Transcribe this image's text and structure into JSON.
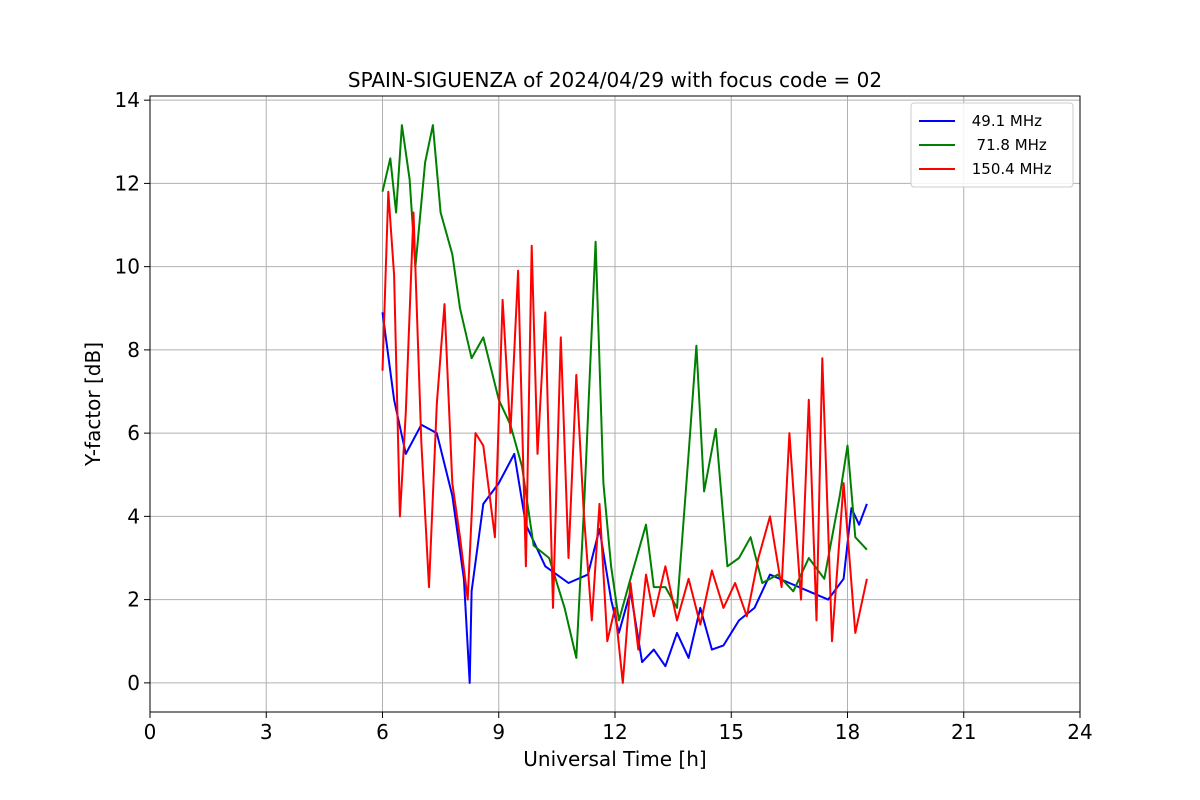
{
  "chart_data": {
    "type": "line",
    "title": "SPAIN-SIGUENZA of 2024/04/29 with focus code = 02",
    "xlabel": "Universal Time [h]",
    "ylabel": "Y-factor [dB]",
    "xlim": [
      0,
      24
    ],
    "ylim": [
      -0.7,
      14.1
    ],
    "xticks": [
      0,
      3,
      6,
      9,
      12,
      15,
      18,
      21,
      24
    ],
    "yticks": [
      0,
      2,
      4,
      6,
      8,
      10,
      12,
      14
    ],
    "grid": true,
    "legend_position": "top-right",
    "series": [
      {
        "name": " 49.1 MHz",
        "color": "#0000ff",
        "points": [
          [
            6.0,
            8.9
          ],
          [
            6.3,
            6.8
          ],
          [
            6.6,
            5.5
          ],
          [
            7.0,
            6.2
          ],
          [
            7.4,
            6.0
          ],
          [
            7.8,
            4.5
          ],
          [
            8.1,
            2.5
          ],
          [
            8.25,
            0.0
          ],
          [
            8.3,
            2.2
          ],
          [
            8.6,
            4.3
          ],
          [
            9.0,
            4.8
          ],
          [
            9.4,
            5.5
          ],
          [
            9.7,
            3.8
          ],
          [
            10.2,
            2.8
          ],
          [
            10.8,
            2.4
          ],
          [
            11.3,
            2.6
          ],
          [
            11.6,
            3.7
          ],
          [
            11.9,
            2.0
          ],
          [
            12.1,
            1.2
          ],
          [
            12.4,
            2.2
          ],
          [
            12.7,
            0.5
          ],
          [
            13.0,
            0.8
          ],
          [
            13.3,
            0.4
          ],
          [
            13.6,
            1.2
          ],
          [
            13.9,
            0.6
          ],
          [
            14.2,
            1.8
          ],
          [
            14.5,
            0.8
          ],
          [
            14.8,
            0.9
          ],
          [
            15.2,
            1.5
          ],
          [
            15.6,
            1.8
          ],
          [
            16.0,
            2.6
          ],
          [
            16.5,
            2.4
          ],
          [
            17.0,
            2.2
          ],
          [
            17.5,
            2.0
          ],
          [
            17.9,
            2.5
          ],
          [
            18.1,
            4.2
          ],
          [
            18.3,
            3.8
          ],
          [
            18.5,
            4.3
          ]
        ]
      },
      {
        "name": "  71.8 MHz",
        "color": "#008000",
        "points": [
          [
            6.0,
            11.8
          ],
          [
            6.2,
            12.6
          ],
          [
            6.35,
            11.3
          ],
          [
            6.5,
            13.4
          ],
          [
            6.7,
            12.1
          ],
          [
            6.85,
            10.0
          ],
          [
            7.1,
            12.5
          ],
          [
            7.3,
            13.4
          ],
          [
            7.5,
            11.3
          ],
          [
            7.8,
            10.3
          ],
          [
            8.0,
            9.0
          ],
          [
            8.3,
            7.8
          ],
          [
            8.6,
            8.3
          ],
          [
            9.0,
            6.8
          ],
          [
            9.3,
            6.2
          ],
          [
            9.6,
            5.2
          ],
          [
            9.9,
            3.3
          ],
          [
            10.3,
            3.0
          ],
          [
            10.7,
            1.8
          ],
          [
            11.0,
            0.6
          ],
          [
            11.2,
            4.2
          ],
          [
            11.5,
            10.6
          ],
          [
            11.7,
            4.8
          ],
          [
            11.9,
            2.8
          ],
          [
            12.1,
            1.5
          ],
          [
            12.4,
            2.5
          ],
          [
            12.8,
            3.8
          ],
          [
            13.0,
            2.3
          ],
          [
            13.3,
            2.3
          ],
          [
            13.6,
            1.8
          ],
          [
            13.9,
            5.5
          ],
          [
            14.1,
            8.1
          ],
          [
            14.3,
            4.6
          ],
          [
            14.6,
            6.1
          ],
          [
            14.9,
            2.8
          ],
          [
            15.2,
            3.0
          ],
          [
            15.5,
            3.5
          ],
          [
            15.8,
            2.4
          ],
          [
            16.2,
            2.6
          ],
          [
            16.6,
            2.2
          ],
          [
            17.0,
            3.0
          ],
          [
            17.4,
            2.5
          ],
          [
            17.8,
            4.5
          ],
          [
            18.0,
            5.7
          ],
          [
            18.2,
            3.5
          ],
          [
            18.5,
            3.2
          ]
        ]
      },
      {
        "name": " 150.4 MHz",
        "color": "#ff0000",
        "points": [
          [
            6.0,
            7.5
          ],
          [
            6.15,
            11.8
          ],
          [
            6.3,
            9.8
          ],
          [
            6.45,
            4.0
          ],
          [
            6.6,
            6.5
          ],
          [
            6.8,
            11.3
          ],
          [
            7.0,
            5.8
          ],
          [
            7.2,
            2.3
          ],
          [
            7.4,
            6.7
          ],
          [
            7.6,
            9.1
          ],
          [
            7.8,
            4.8
          ],
          [
            8.0,
            3.5
          ],
          [
            8.2,
            2.0
          ],
          [
            8.4,
            6.0
          ],
          [
            8.6,
            5.7
          ],
          [
            8.9,
            3.5
          ],
          [
            9.1,
            9.2
          ],
          [
            9.3,
            6.0
          ],
          [
            9.5,
            9.9
          ],
          [
            9.7,
            2.8
          ],
          [
            9.85,
            10.5
          ],
          [
            10.0,
            5.5
          ],
          [
            10.2,
            8.9
          ],
          [
            10.4,
            1.8
          ],
          [
            10.6,
            8.3
          ],
          [
            10.8,
            3.0
          ],
          [
            11.0,
            7.4
          ],
          [
            11.2,
            4.0
          ],
          [
            11.4,
            1.5
          ],
          [
            11.6,
            4.3
          ],
          [
            11.8,
            1.0
          ],
          [
            12.0,
            1.8
          ],
          [
            12.2,
            0.0
          ],
          [
            12.4,
            2.4
          ],
          [
            12.6,
            0.8
          ],
          [
            12.8,
            2.6
          ],
          [
            13.0,
            1.6
          ],
          [
            13.3,
            2.8
          ],
          [
            13.6,
            1.5
          ],
          [
            13.9,
            2.5
          ],
          [
            14.2,
            1.4
          ],
          [
            14.5,
            2.7
          ],
          [
            14.8,
            1.8
          ],
          [
            15.1,
            2.4
          ],
          [
            15.4,
            1.6
          ],
          [
            15.7,
            3.0
          ],
          [
            16.0,
            4.0
          ],
          [
            16.3,
            2.3
          ],
          [
            16.5,
            6.0
          ],
          [
            16.8,
            2.0
          ],
          [
            17.0,
            6.8
          ],
          [
            17.2,
            1.5
          ],
          [
            17.35,
            7.8
          ],
          [
            17.6,
            1.0
          ],
          [
            17.9,
            4.8
          ],
          [
            18.2,
            1.2
          ],
          [
            18.5,
            2.5
          ]
        ]
      }
    ]
  }
}
